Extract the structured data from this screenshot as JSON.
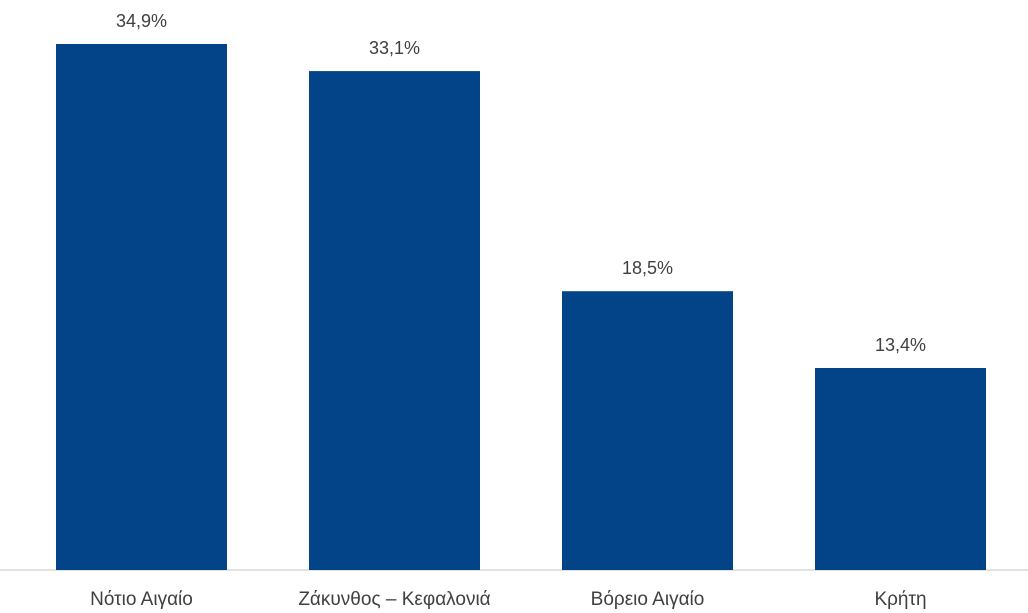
{
  "chart_data": {
    "type": "bar",
    "categories": [
      "Νότιο Αιγαίο",
      "Ζάκυνθος – Κεφαλονιά",
      "Βόρειο Αιγαίο",
      "Κρήτη"
    ],
    "values": [
      34.9,
      33.1,
      18.5,
      13.4
    ],
    "data_labels": [
      "34,9%",
      "33,1%",
      "18,5%",
      "13,4%"
    ],
    "unit": "%",
    "ylim": [
      0,
      34.9
    ],
    "grid": false,
    "legend": "none",
    "colors": {
      "bar": "#034387",
      "axis": "#d9d9d9",
      "text": "#404040"
    }
  }
}
